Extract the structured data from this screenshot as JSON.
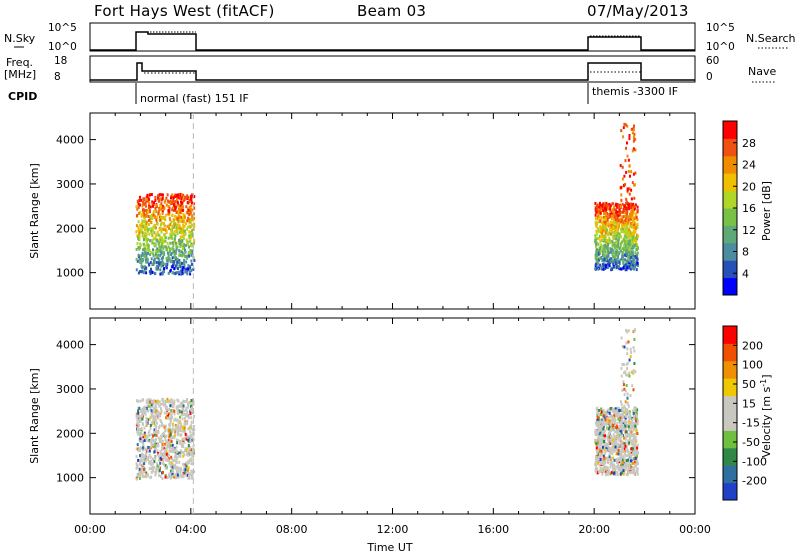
{
  "header": {
    "site": "Fort Hays West (fitACF)",
    "beam": "Beam 03",
    "date": "07/May/2013"
  },
  "status_panels": {
    "nsky_label": "N.Sky",
    "nsky_ticks": [
      "10^5",
      "10^0"
    ],
    "nsearch_label": "N.Search",
    "freq_label_1": "Freq.",
    "freq_label_2": "[MHz]",
    "freq_ticks": [
      "18",
      "8"
    ],
    "nave_ticks": [
      "60",
      "0"
    ],
    "nave_label": "Nave",
    "cpid_label": "CPID",
    "cpid_entries": [
      {
        "start": 2.0,
        "end": 4.1,
        "label": "normal (fast) 151 IF"
      },
      {
        "start": 20.0,
        "end": 21.7,
        "label": "themis -3300 IF"
      }
    ]
  },
  "colors": {
    "power_scale": [
      "#0000ff",
      "#2650b8",
      "#4c8ca0",
      "#5fa878",
      "#78c046",
      "#b0d628",
      "#f0c000",
      "#f08c00",
      "#f05010",
      "#ff0000"
    ],
    "velocity_scale": [
      "#2040c8",
      "#3070a0",
      "#308848",
      "#70c040",
      "#c8c8c0",
      "#c8c8c0",
      "#f0c800",
      "#f09000",
      "#f05000",
      "#ff0000"
    ]
  },
  "chart_data": [
    {
      "type": "heatmap",
      "panel": "power",
      "ylabel": "Slant Range [km]",
      "xlabel": "Time UT",
      "x_ticks": [
        "00:00",
        "04:00",
        "08:00",
        "12:00",
        "16:00",
        "20:00",
        "00:00"
      ],
      "y_ticks": [
        1000,
        2000,
        3000,
        4000
      ],
      "xlim": [
        0,
        24
      ],
      "ylim": [
        180,
        4600
      ],
      "colorbar_label": "Power [dB]",
      "colorbar_ticks": [
        "28",
        "24",
        "20",
        "16",
        "12",
        "8",
        "4"
      ],
      "scatter_regions": [
        {
          "t0": 1.8,
          "t1": 4.1,
          "r0": 1000,
          "r1": 2800
        },
        {
          "t0": 20.0,
          "t1": 21.7,
          "r0": 1100,
          "r1": 2600
        },
        {
          "t0": 21.0,
          "t1": 21.6,
          "r0": 2600,
          "r1": 4400
        }
      ]
    },
    {
      "type": "heatmap",
      "panel": "velocity",
      "ylabel": "Slant Range [km]",
      "xlabel": "Time UT",
      "x_ticks": [
        "00:00",
        "04:00",
        "08:00",
        "12:00",
        "16:00",
        "20:00",
        "00:00"
      ],
      "y_ticks": [
        1000,
        2000,
        3000,
        4000
      ],
      "xlim": [
        0,
        24
      ],
      "ylim": [
        180,
        4600
      ],
      "colorbar_label": "Velocity [m s^-1]",
      "colorbar_ticks": [
        "200",
        "100",
        "50",
        "15",
        "-15",
        "-50",
        "-100",
        "-200"
      ],
      "scatter_regions": [
        {
          "t0": 1.8,
          "t1": 4.1,
          "r0": 1000,
          "r1": 2800
        },
        {
          "t0": 20.0,
          "t1": 21.7,
          "r0": 1100,
          "r1": 2600
        },
        {
          "t0": 21.0,
          "t1": 21.6,
          "r0": 2600,
          "r1": 4400
        }
      ]
    }
  ]
}
